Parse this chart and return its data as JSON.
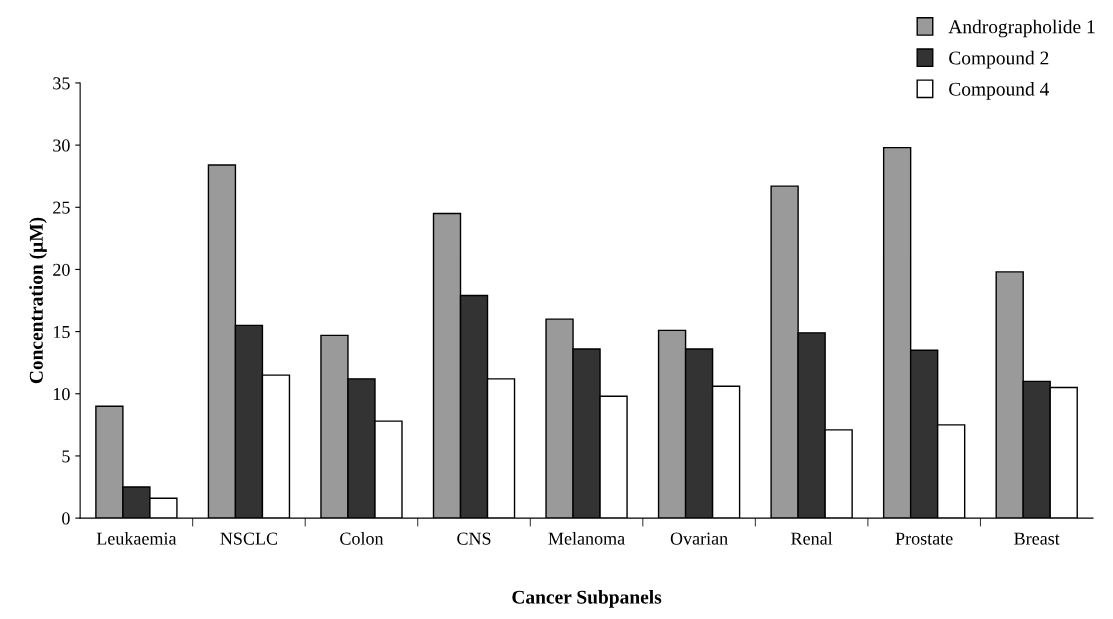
{
  "chart_data": {
    "type": "bar",
    "xlabel": "Cancer Subpanels",
    "ylabel": "Concentration (µM)",
    "categories": [
      "Leukaemia",
      "NSCLC",
      "Colon",
      "CNS",
      "Melanoma",
      "Ovarian",
      "Renal",
      "Prostate",
      "Breast"
    ],
    "series": [
      {
        "name": "Andrographolide 1",
        "color": "#9a9a9a",
        "values": [
          9.0,
          28.4,
          14.7,
          24.5,
          16.0,
          15.1,
          26.7,
          29.8,
          19.8
        ]
      },
      {
        "name": "Compound 2",
        "color": "#333333",
        "values": [
          2.5,
          15.5,
          11.2,
          17.9,
          13.6,
          13.6,
          14.9,
          13.5,
          11.0
        ]
      },
      {
        "name": "Compound 4",
        "color": "#ffffff",
        "values": [
          1.6,
          11.5,
          7.8,
          11.2,
          9.8,
          10.6,
          7.1,
          7.5,
          10.5
        ]
      }
    ],
    "ylim": [
      0,
      35
    ],
    "yticks": [
      0,
      5,
      10,
      15,
      20,
      25,
      30,
      35
    ],
    "grid": false,
    "legend": "top right"
  }
}
